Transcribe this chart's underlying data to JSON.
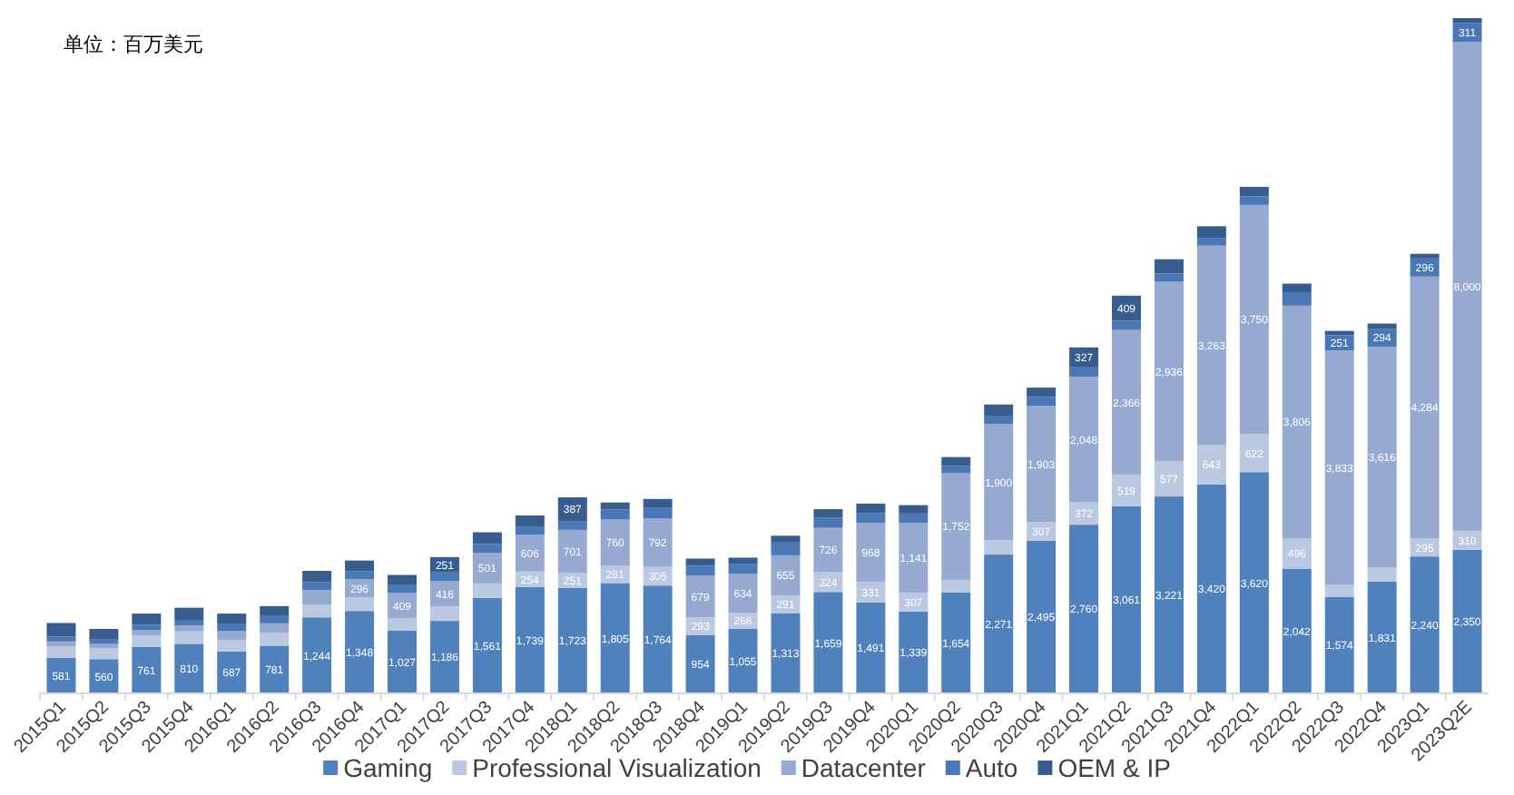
{
  "chart_data": {
    "type": "bar",
    "stacked": true,
    "legend": "bottom",
    "annotations": [
      "单位：百万美元"
    ],
    "categories": [
      "2015Q1",
      "2015Q2",
      "2015Q3",
      "2015Q4",
      "2016Q1",
      "2016Q2",
      "2016Q3",
      "2016Q4",
      "2017Q1",
      "2017Q2",
      "2017Q3",
      "2017Q4",
      "2018Q1",
      "2018Q2",
      "2018Q3",
      "2018Q4",
      "2019Q1",
      "2019Q2",
      "2019Q3",
      "2019Q4",
      "2020Q1",
      "2020Q2",
      "2020Q3",
      "2020Q4",
      "2021Q1",
      "2021Q2",
      "2021Q3",
      "2021Q4",
      "2022Q1",
      "2022Q2",
      "2022Q3",
      "2022Q4",
      "2023Q1",
      "2023Q2E"
    ],
    "series": [
      {
        "name": "Gaming",
        "color": "#4f81bd",
        "values": [
          581,
          560,
          761,
          810,
          687,
          781,
          1244,
          1348,
          1027,
          1186,
          1561,
          1739,
          1723,
          1805,
          1764,
          954,
          1055,
          1313,
          1659,
          1491,
          1339,
          1654,
          2271,
          2495,
          2760,
          3061,
          3221,
          3420,
          3620,
          2042,
          1574,
          1831,
          2240,
          2350
        ],
        "value_labels": [
          "581",
          "560",
          "761",
          "810",
          "687",
          "781",
          "1,244",
          "1,348",
          "1,027",
          "1,186",
          "1,561",
          "1,739",
          "1,723",
          "1,805",
          "1,764",
          "954",
          "1,055",
          "1,313",
          "1,659",
          "1,491",
          "1,339",
          "1,654",
          "2,271",
          "2,495",
          "2,760",
          "3,061",
          "3,221",
          "3,420",
          "3,620",
          "2,042",
          "1,574",
          "1,831",
          "2,240",
          "2,350"
        ]
      },
      {
        "name": "Professional Visualization",
        "color": "#bac8e0",
        "values": [
          189,
          178,
          190,
          203,
          189,
          214,
          207,
          225,
          205,
          235,
          239,
          254,
          251,
          281,
          305,
          293,
          266,
          291,
          324,
          331,
          307,
          203,
          236,
          307,
          372,
          519,
          577,
          643,
          622,
          496,
          200,
          226,
          295,
          310
        ],
        "value_labels": [
          null,
          null,
          null,
          null,
          null,
          null,
          null,
          null,
          null,
          null,
          null,
          "254",
          "251",
          "281",
          "305",
          "293",
          "266",
          "291",
          "324",
          "331",
          "307",
          null,
          null,
          "307",
          "372",
          "519",
          "577",
          "643",
          "622",
          "496",
          null,
          null,
          "295",
          "310"
        ]
      },
      {
        "name": "Datacenter",
        "color": "#95a9d1",
        "values": [
          79,
          71,
          82,
          97,
          143,
          151,
          240,
          296,
          409,
          416,
          501,
          606,
          701,
          760,
          792,
          679,
          634,
          655,
          726,
          968,
          1141,
          1752,
          1900,
          1903,
          2048,
          2366,
          2936,
          3263,
          3750,
          3806,
          3833,
          3616,
          4284,
          8000
        ],
        "value_labels": [
          null,
          null,
          null,
          null,
          null,
          null,
          null,
          "296",
          "409",
          "416",
          "501",
          "606",
          "701",
          "760",
          "792",
          "679",
          "634",
          "655",
          "726",
          "968",
          "1,141",
          "1,752",
          "1,900",
          "1,903",
          "2,048",
          "2,366",
          "2,936",
          "3,263",
          "3,750",
          "3,806",
          "3,833",
          "3,616",
          "4,284",
          "8,000"
        ]
      },
      {
        "name": "Auto",
        "color": "#4a78b6",
        "values": [
          79,
          71,
          93,
          93,
          113,
          119,
          127,
          128,
          140,
          142,
          144,
          132,
          145,
          161,
          172,
          163,
          166,
          209,
          162,
          163,
          155,
          111,
          125,
          145,
          154,
          152,
          135,
          125,
          138,
          220,
          251,
          294,
          296,
          311
        ],
        "value_labels": [
          null,
          null,
          null,
          null,
          null,
          null,
          null,
          null,
          null,
          null,
          null,
          null,
          null,
          null,
          null,
          null,
          null,
          null,
          null,
          null,
          null,
          null,
          null,
          null,
          null,
          null,
          null,
          null,
          null,
          null,
          "251",
          "294",
          "296",
          "311"
        ]
      },
      {
        "name": "OEM & IP",
        "color": "#375d8e",
        "values": [
          223,
          174,
          179,
          198,
          173,
          163,
          186,
          176,
          156,
          251,
          191,
          180,
          387,
          116,
          148,
          116,
          99,
          111,
          143,
          152,
          138,
          146,
          194,
          153,
          327,
          409,
          234,
          192,
          158,
          140,
          73,
          84,
          77,
          77
        ],
        "value_labels": [
          null,
          null,
          null,
          null,
          null,
          null,
          null,
          null,
          null,
          "251",
          null,
          null,
          "387",
          null,
          null,
          null,
          null,
          null,
          null,
          null,
          null,
          null,
          null,
          null,
          "327",
          "409",
          null,
          null,
          null,
          null,
          null,
          null,
          null,
          null
        ]
      }
    ]
  }
}
